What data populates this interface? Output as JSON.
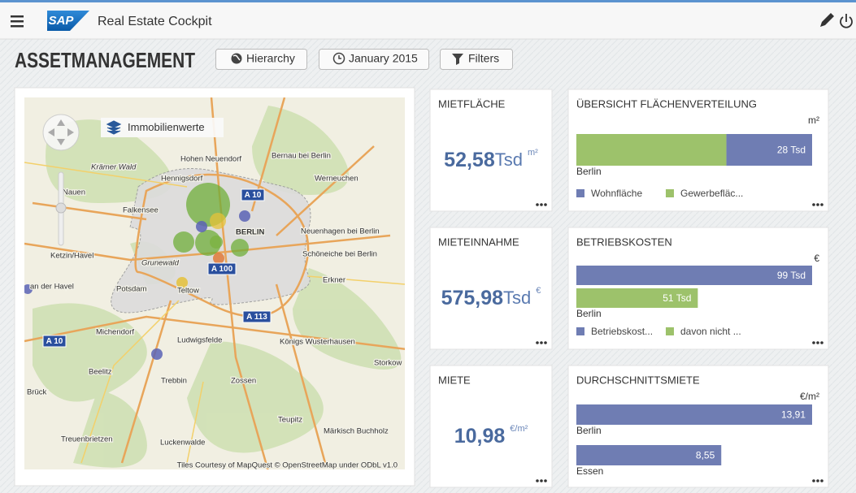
{
  "header": {
    "logo": "SAP",
    "app_title": "Real Estate Cockpit"
  },
  "page": {
    "title": "ASSETMANAGEMENT",
    "buttons": [
      "Hierarchy",
      "January 2015",
      "Filters"
    ]
  },
  "map": {
    "layer_label": "Immobilienwerte",
    "attribution": "Tiles Courtesy of MapQuest © OpenStreetMap under ODbL v1.0",
    "labels": [
      "Hohen Neuendorf",
      "Bernau bei Berlin",
      "Hennigsdorf",
      "Werneuchen",
      "Krämer Wald",
      "Nauen",
      "Falkensee",
      "BERLIN",
      "Neuenhagen bei Berlin",
      "Ketzin/Havel",
      "Grunewald",
      "Schöneiche bei Berlin",
      "Erkner",
      "Potsdam",
      "Teltow",
      "an der Havel",
      "Michendorf",
      "Ludwigsfelde",
      "Königs Wusterhausen",
      "Beelitz",
      "Trebbin",
      "Zossen",
      "Storkow",
      "Brück",
      "Teupitz",
      "Treuenbrietzen",
      "Luckenwalde",
      "Märkisch Buchholz"
    ],
    "road_signs": [
      "A 10",
      "A 100",
      "A 113",
      "A 10"
    ]
  },
  "kpi_tiles": [
    {
      "title": "MIETFLÄCHE",
      "value": "52,58",
      "scale": "Tsd",
      "unit": "m²"
    },
    {
      "title": "MIETEINNAHME",
      "value": "575,98",
      "scale": "Tsd",
      "unit": "€"
    },
    {
      "title": "MIETE",
      "value": "10,98",
      "unit": "€/m²"
    }
  ],
  "bar_tiles": [
    {
      "title": "ÜBERSICHT FLÄCHENVERTEILUNG",
      "unit": "m²",
      "stacked": true,
      "categories": [
        "Berlin"
      ],
      "series": [
        {
          "name": "Wohnfläche",
          "color": "#6f7db3",
          "values": [
            28
          ],
          "value_labels": [
            "28 Tsd"
          ]
        },
        {
          "name": "Gewerbefläc...",
          "color": "#9dc26b",
          "values": [
            49
          ]
        }
      ]
    },
    {
      "title": "BETRIEBSKOSTEN",
      "unit": "€",
      "stacked": false,
      "categories": [
        "Berlin"
      ],
      "series": [
        {
          "name": "Betriebskost...",
          "color": "#6f7db3",
          "values": [
            99
          ],
          "value_labels": [
            "99 Tsd"
          ]
        },
        {
          "name": "davon nicht ...",
          "color": "#9dc26b",
          "values": [
            51
          ],
          "value_labels": [
            "51 Tsd"
          ]
        }
      ]
    },
    {
      "title": "DURCHSCHNITTSMIETE",
      "unit": "€/m²",
      "stacked": false,
      "categories": [
        "Berlin",
        "Essen"
      ],
      "series": [
        {
          "color": "#6f7db3",
          "values": [
            13.91,
            8.55
          ],
          "value_labels": [
            "13,91",
            "8,55"
          ]
        }
      ]
    }
  ]
}
